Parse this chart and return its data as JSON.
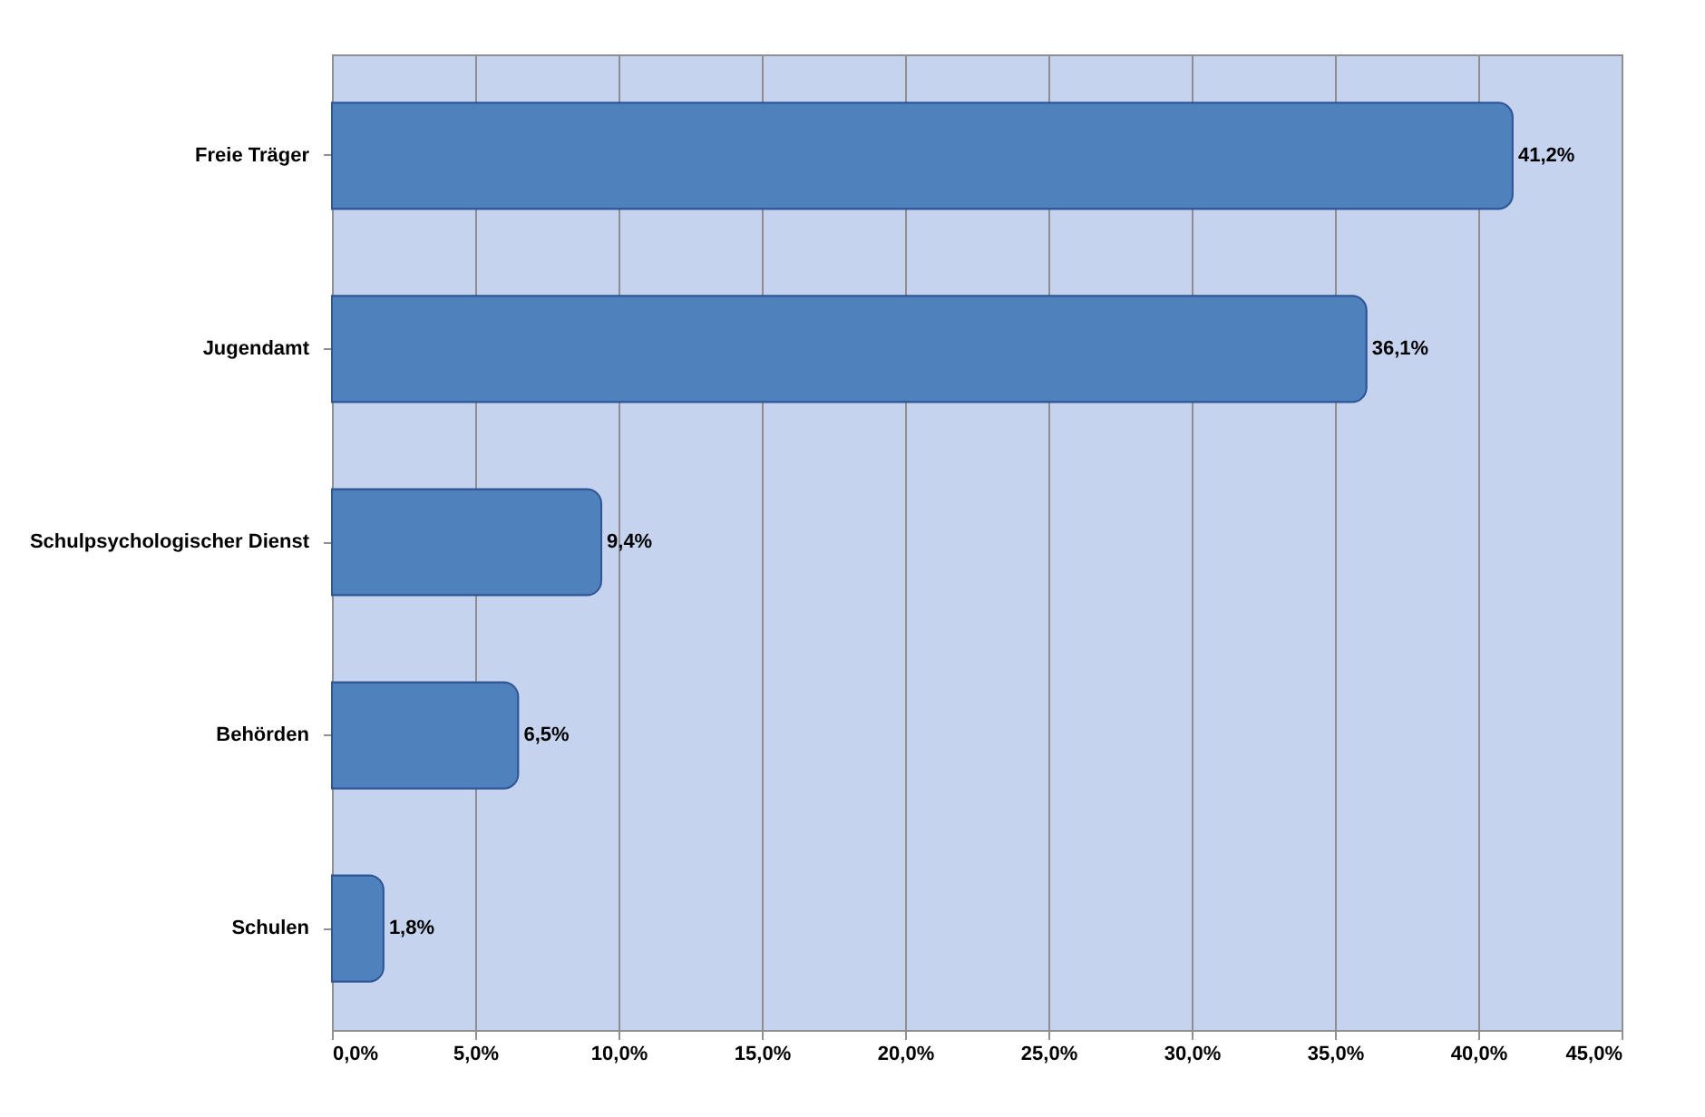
{
  "chart_data": {
    "type": "bar",
    "orientation": "horizontal",
    "categories": [
      "Freie Träger",
      "Jugendamt",
      "Schulpsychologischer Dienst",
      "Behörden",
      "Schulen"
    ],
    "values": [
      41.2,
      36.1,
      9.4,
      6.5,
      1.8
    ],
    "value_labels": [
      "41,2%",
      "36,1%",
      "9,4%",
      "6,5%",
      "1,8%"
    ],
    "color": "#4f81bd",
    "xlim": [
      0,
      45
    ],
    "xticks": [
      {
        "value": 0,
        "label": "0,0%"
      },
      {
        "value": 5,
        "label": "5,0%"
      },
      {
        "value": 10,
        "label": "10,0%"
      },
      {
        "value": 15,
        "label": "15,0%"
      },
      {
        "value": 20,
        "label": "20,0%"
      },
      {
        "value": 25,
        "label": "25,0%"
      },
      {
        "value": 30,
        "label": "30,0%"
      },
      {
        "value": 35,
        "label": "35,0%"
      },
      {
        "value": 40,
        "label": "40,0%"
      },
      {
        "value": 45,
        "label": "45,0%"
      }
    ],
    "grid": "x"
  }
}
